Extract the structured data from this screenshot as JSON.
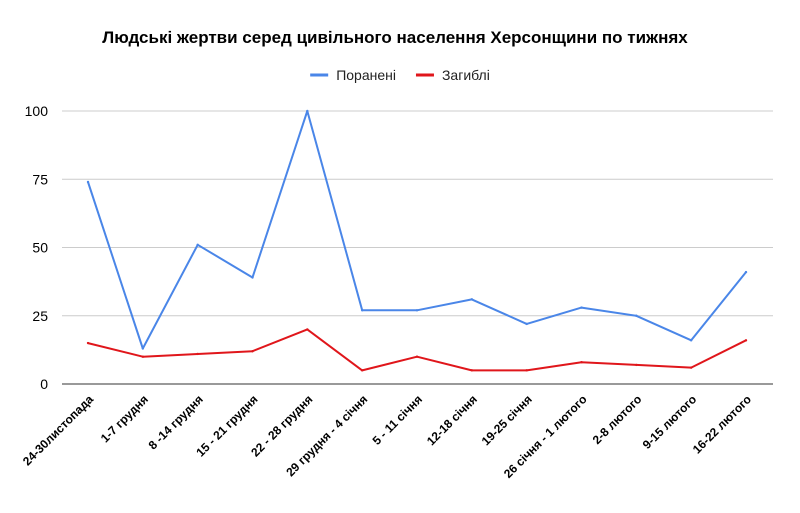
{
  "chart_data": {
    "type": "line",
    "title": "Людські жертви серед цивільного населення Херсонщини по тижнях",
    "xlabel": "",
    "ylabel": "",
    "categories": [
      "24-30листопада",
      "1-7 грудня",
      "8 -14 грудня",
      "15 - 21 грудня",
      "22 - 28 грудня",
      "29 грудня - 4 січня",
      "5 - 11 січня",
      "12-18 січня",
      "19-25 січня",
      "26 січня - 1 лютого",
      "2-8 лютого",
      "9-15 лютого",
      "16-22 лютого"
    ],
    "series": [
      {
        "name": "Поранені",
        "color": "#4a86e8",
        "values": [
          74,
          13,
          51,
          39,
          100,
          27,
          27,
          31,
          22,
          28,
          25,
          16,
          41
        ]
      },
      {
        "name": "Загиблі",
        "color": "#e0161b",
        "values": [
          15,
          10,
          11,
          12,
          20,
          5,
          10,
          5,
          5,
          8,
          7,
          6,
          16
        ]
      }
    ],
    "ylim": [
      0,
      100
    ],
    "yticks": [
      0,
      25,
      50,
      75,
      100
    ],
    "grid": true,
    "legend_position": "top-center"
  }
}
